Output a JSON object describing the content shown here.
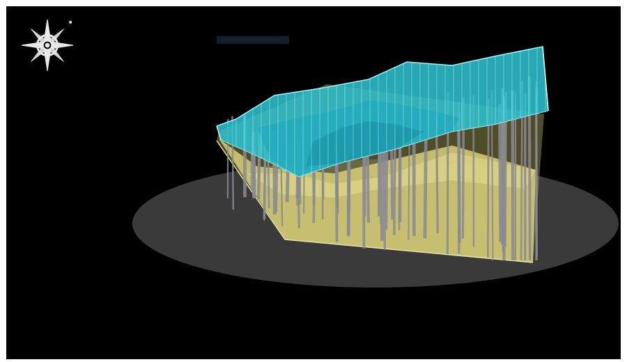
{
  "viewport": {
    "title": "",
    "background_color": "#000000"
  },
  "compass": {
    "icon": "compass-rose-icon",
    "color": "#e8e8e8"
  },
  "model": {
    "surface_color": "#39c9d6",
    "base_color": "#d8cf78",
    "pile_color": "#8a8a92",
    "ground_disc_color": "#3a3a3a"
  }
}
